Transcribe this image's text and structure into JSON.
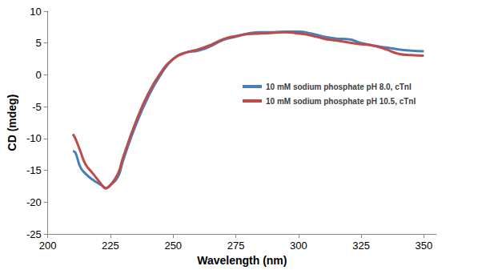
{
  "chart_data": {
    "type": "line",
    "x_label": "Wavelength (nm)",
    "y_label": "CD (mdeg)",
    "xlim": [
      200,
      355
    ],
    "xticks": [
      200,
      225,
      250,
      275,
      300,
      325,
      350
    ],
    "ylim": [
      -25,
      10
    ],
    "yticks": [
      -25,
      -20,
      -15,
      -10,
      -5,
      0,
      5,
      10
    ],
    "grid": false,
    "legend": "center right",
    "x": [
      210,
      211,
      213,
      215,
      218,
      220,
      222,
      223,
      225,
      228,
      230,
      235,
      240,
      245,
      250,
      255,
      260,
      265,
      270,
      275,
      280,
      285,
      290,
      295,
      300,
      305,
      310,
      315,
      320,
      325,
      330,
      335,
      340,
      345,
      350
    ],
    "series": [
      {
        "name": "10 mM sodium phosphate pH 8.0, cTnI",
        "color": "#4a7ebb",
        "values": [
          -12,
          -12.2,
          -14.5,
          -15.5,
          -16.5,
          -17,
          -17.5,
          -17.8,
          -17.3,
          -16,
          -13.5,
          -8,
          -3.5,
          0,
          2.5,
          3.5,
          3.8,
          4.5,
          5.5,
          6,
          6.5,
          6.7,
          6.7,
          6.8,
          6.8,
          6.5,
          6,
          5.7,
          5.6,
          5,
          4.6,
          4.3,
          4,
          3.8,
          3.7
        ]
      },
      {
        "name": "10 mM sodium phosphate pH 10.5, cTnI",
        "color": "#be4b48",
        "values": [
          -9.3,
          -10,
          -12,
          -14,
          -15.5,
          -16.5,
          -17.5,
          -17.8,
          -17.3,
          -15.5,
          -13,
          -7.5,
          -3,
          0.3,
          2.5,
          3.5,
          4,
          4.7,
          5.6,
          6.1,
          6.4,
          6.5,
          6.6,
          6.7,
          6.5,
          6.2,
          5.7,
          5.4,
          5.1,
          4.8,
          4.6,
          4,
          3.3,
          3.1,
          3
        ]
      }
    ]
  }
}
